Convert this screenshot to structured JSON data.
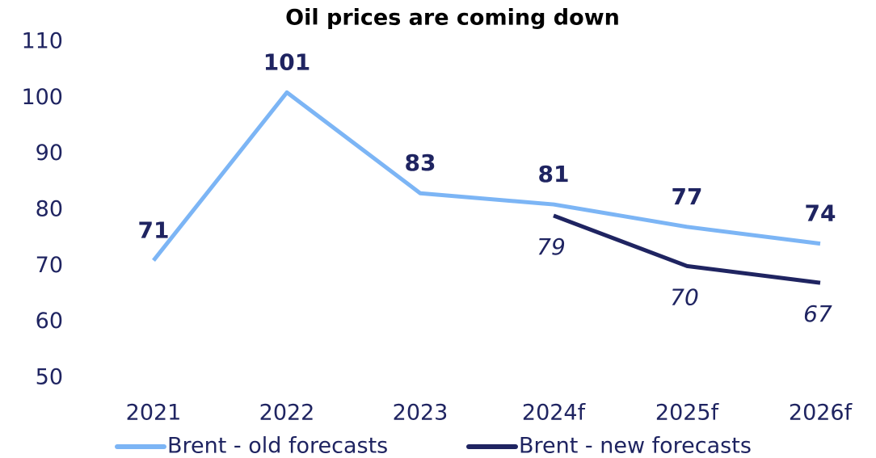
{
  "chart_data": {
    "type": "line",
    "title": "Oil prices are coming down",
    "categories": [
      "2021",
      "2022",
      "2023",
      "2024f",
      "2025f",
      "2026f"
    ],
    "series": [
      {
        "name": "Brent - old forecasts",
        "color": "#7cb5f5",
        "values": [
          71,
          101,
          83,
          81,
          77,
          74
        ]
      },
      {
        "name": "Brent - new forecasts",
        "color": "#1f2461",
        "values": [
          null,
          null,
          null,
          79,
          70,
          67
        ]
      }
    ],
    "ylim": [
      50,
      110
    ],
    "yticks": [
      50,
      60,
      70,
      80,
      90,
      100,
      110
    ],
    "grid": false,
    "legend": "bottom"
  }
}
